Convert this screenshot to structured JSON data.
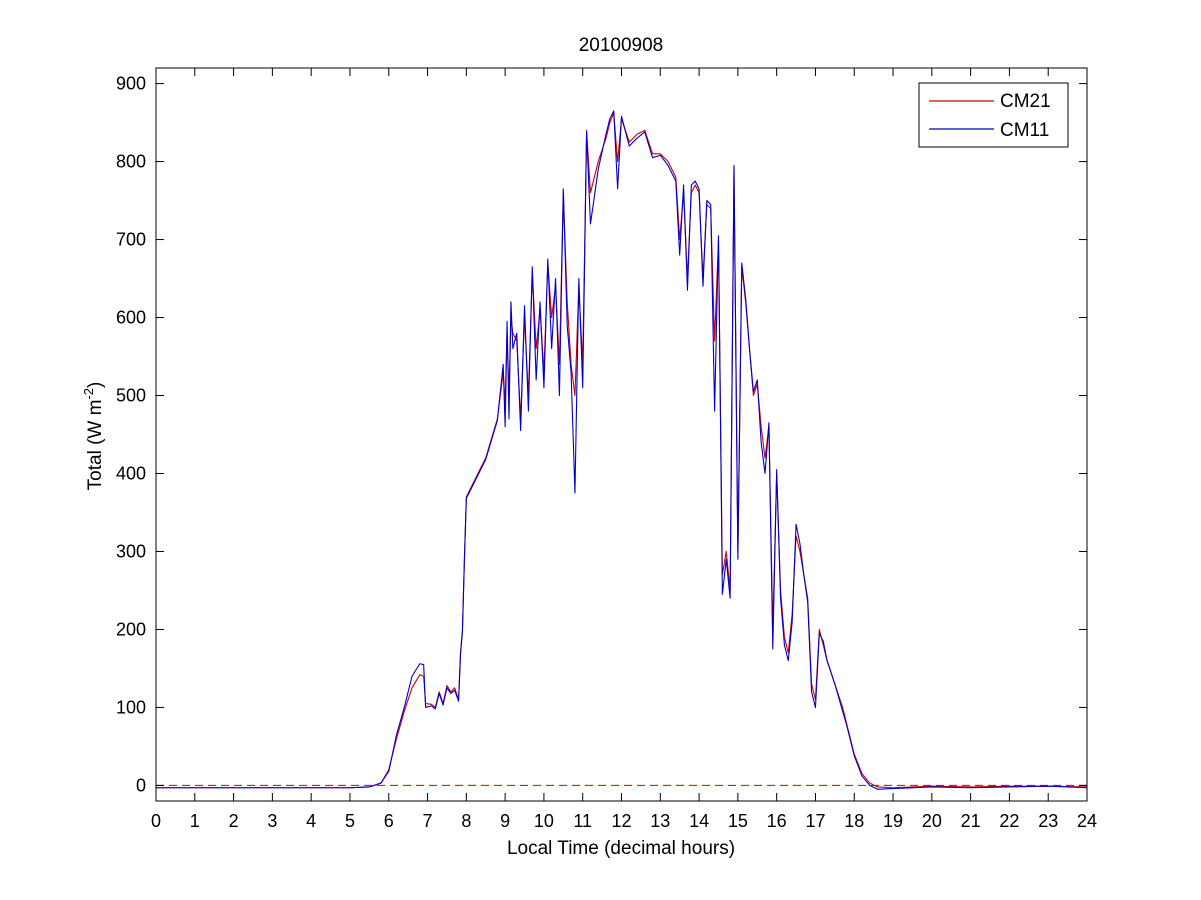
{
  "chart_data": {
    "type": "line",
    "title": "20100908",
    "xlabel": "Local Time (decimal hours)",
    "ylabel_main": "Total (W m",
    "ylabel_sup": "-2",
    "ylabel_close": ")",
    "xlim": [
      0,
      24
    ],
    "ylim": [
      -20,
      920
    ],
    "xticks": [
      0,
      1,
      2,
      3,
      4,
      5,
      6,
      7,
      8,
      9,
      10,
      11,
      12,
      13,
      14,
      15,
      16,
      17,
      18,
      19,
      20,
      21,
      22,
      23,
      24
    ],
    "yticks": [
      0,
      100,
      200,
      300,
      400,
      500,
      600,
      700,
      800,
      900
    ],
    "grid": false,
    "legend_position": "top-right",
    "reference_line": {
      "y": 0,
      "style": "dashed",
      "color": "#cc0000"
    },
    "series": [
      {
        "name": "CM21",
        "color": "#cc0000",
        "points": [
          [
            0,
            -3
          ],
          [
            1,
            -3
          ],
          [
            2,
            -3
          ],
          [
            3,
            -3
          ],
          [
            4,
            -3
          ],
          [
            5,
            -3
          ],
          [
            5.5,
            -2
          ],
          [
            5.8,
            3
          ],
          [
            6.0,
            20
          ],
          [
            6.2,
            60
          ],
          [
            6.4,
            95
          ],
          [
            6.6,
            125
          ],
          [
            6.8,
            142
          ],
          [
            6.9,
            140
          ],
          [
            6.95,
            105
          ],
          [
            7.1,
            104
          ],
          [
            7.2,
            100
          ],
          [
            7.3,
            120
          ],
          [
            7.4,
            105
          ],
          [
            7.5,
            128
          ],
          [
            7.6,
            120
          ],
          [
            7.7,
            125
          ],
          [
            7.8,
            110
          ],
          [
            7.85,
            170
          ],
          [
            7.9,
            200
          ],
          [
            7.95,
            290
          ],
          [
            8.0,
            370
          ],
          [
            8.2,
            390
          ],
          [
            8.5,
            420
          ],
          [
            8.8,
            470
          ],
          [
            8.95,
            530
          ],
          [
            9.0,
            490
          ],
          [
            9.05,
            580
          ],
          [
            9.1,
            500
          ],
          [
            9.15,
            600
          ],
          [
            9.2,
            580
          ],
          [
            9.3,
            570
          ],
          [
            9.4,
            470
          ],
          [
            9.5,
            600
          ],
          [
            9.6,
            500
          ],
          [
            9.7,
            660
          ],
          [
            9.8,
            560
          ],
          [
            9.9,
            610
          ],
          [
            10.0,
            530
          ],
          [
            10.1,
            670
          ],
          [
            10.2,
            600
          ],
          [
            10.3,
            640
          ],
          [
            10.4,
            540
          ],
          [
            10.5,
            760
          ],
          [
            10.6,
            620
          ],
          [
            10.7,
            540
          ],
          [
            10.8,
            500
          ],
          [
            10.9,
            640
          ],
          [
            11.0,
            540
          ],
          [
            11.1,
            840
          ],
          [
            11.2,
            760
          ],
          [
            11.4,
            800
          ],
          [
            11.6,
            830
          ],
          [
            11.7,
            850
          ],
          [
            11.8,
            862
          ],
          [
            11.9,
            800
          ],
          [
            12.0,
            855
          ],
          [
            12.2,
            825
          ],
          [
            12.4,
            835
          ],
          [
            12.6,
            840
          ],
          [
            12.8,
            810
          ],
          [
            13.0,
            810
          ],
          [
            13.2,
            800
          ],
          [
            13.4,
            780
          ],
          [
            13.5,
            700
          ],
          [
            13.6,
            760
          ],
          [
            13.7,
            650
          ],
          [
            13.8,
            760
          ],
          [
            13.9,
            770
          ],
          [
            14.0,
            760
          ],
          [
            14.1,
            650
          ],
          [
            14.2,
            745
          ],
          [
            14.3,
            740
          ],
          [
            14.4,
            570
          ],
          [
            14.5,
            700
          ],
          [
            14.6,
            270
          ],
          [
            14.7,
            300
          ],
          [
            14.8,
            250
          ],
          [
            14.9,
            790
          ],
          [
            15.0,
            300
          ],
          [
            15.1,
            665
          ],
          [
            15.2,
            620
          ],
          [
            15.3,
            560
          ],
          [
            15.4,
            500
          ],
          [
            15.5,
            515
          ],
          [
            15.6,
            460
          ],
          [
            15.7,
            420
          ],
          [
            15.8,
            460
          ],
          [
            15.9,
            200
          ],
          [
            16.0,
            400
          ],
          [
            16.1,
            250
          ],
          [
            16.2,
            190
          ],
          [
            16.3,
            170
          ],
          [
            16.4,
            220
          ],
          [
            16.5,
            320
          ],
          [
            16.6,
            300
          ],
          [
            16.7,
            270
          ],
          [
            16.8,
            240
          ],
          [
            16.9,
            130
          ],
          [
            17.0,
            110
          ],
          [
            17.1,
            200
          ],
          [
            17.2,
            180
          ],
          [
            17.3,
            160
          ],
          [
            17.5,
            130
          ],
          [
            17.7,
            100
          ],
          [
            17.8,
            80
          ],
          [
            18.0,
            40
          ],
          [
            18.2,
            15
          ],
          [
            18.4,
            3
          ],
          [
            18.6,
            -2
          ],
          [
            19.0,
            -3
          ],
          [
            20.0,
            -1
          ],
          [
            21.0,
            -2
          ],
          [
            22.0,
            -1
          ],
          [
            23.0,
            -1
          ],
          [
            24.0,
            -2
          ]
        ]
      },
      {
        "name": "CM11",
        "color": "#0000cc",
        "points": [
          [
            0,
            -3
          ],
          [
            1,
            -3
          ],
          [
            2,
            -3
          ],
          [
            3,
            -3
          ],
          [
            4,
            -3
          ],
          [
            5,
            -3
          ],
          [
            5.5,
            -2
          ],
          [
            5.8,
            3
          ],
          [
            6.0,
            18
          ],
          [
            6.2,
            65
          ],
          [
            6.4,
            100
          ],
          [
            6.6,
            140
          ],
          [
            6.8,
            156
          ],
          [
            6.9,
            155
          ],
          [
            6.95,
            100
          ],
          [
            7.1,
            102
          ],
          [
            7.2,
            98
          ],
          [
            7.3,
            118
          ],
          [
            7.4,
            103
          ],
          [
            7.5,
            125
          ],
          [
            7.6,
            118
          ],
          [
            7.7,
            122
          ],
          [
            7.8,
            108
          ],
          [
            7.85,
            168
          ],
          [
            7.9,
            198
          ],
          [
            7.95,
            288
          ],
          [
            8.0,
            368
          ],
          [
            8.2,
            388
          ],
          [
            8.5,
            418
          ],
          [
            8.8,
            468
          ],
          [
            8.95,
            540
          ],
          [
            9.0,
            460
          ],
          [
            9.05,
            595
          ],
          [
            9.1,
            470
          ],
          [
            9.15,
            620
          ],
          [
            9.2,
            560
          ],
          [
            9.3,
            580
          ],
          [
            9.4,
            455
          ],
          [
            9.5,
            615
          ],
          [
            9.6,
            480
          ],
          [
            9.7,
            665
          ],
          [
            9.8,
            520
          ],
          [
            9.9,
            620
          ],
          [
            10.0,
            510
          ],
          [
            10.1,
            675
          ],
          [
            10.2,
            560
          ],
          [
            10.3,
            650
          ],
          [
            10.4,
            500
          ],
          [
            10.5,
            765
          ],
          [
            10.6,
            590
          ],
          [
            10.7,
            530
          ],
          [
            10.8,
            375
          ],
          [
            10.9,
            650
          ],
          [
            11.0,
            510
          ],
          [
            11.1,
            838
          ],
          [
            11.2,
            720
          ],
          [
            11.4,
            790
          ],
          [
            11.6,
            835
          ],
          [
            11.7,
            855
          ],
          [
            11.8,
            865
          ],
          [
            11.9,
            765
          ],
          [
            12.0,
            858
          ],
          [
            12.2,
            820
          ],
          [
            12.4,
            830
          ],
          [
            12.6,
            838
          ],
          [
            12.8,
            805
          ],
          [
            13.0,
            808
          ],
          [
            13.2,
            795
          ],
          [
            13.4,
            775
          ],
          [
            13.5,
            680
          ],
          [
            13.6,
            770
          ],
          [
            13.7,
            635
          ],
          [
            13.8,
            770
          ],
          [
            13.9,
            775
          ],
          [
            14.0,
            765
          ],
          [
            14.1,
            640
          ],
          [
            14.2,
            750
          ],
          [
            14.3,
            745
          ],
          [
            14.4,
            480
          ],
          [
            14.5,
            705
          ],
          [
            14.6,
            245
          ],
          [
            14.7,
            290
          ],
          [
            14.8,
            240
          ],
          [
            14.9,
            795
          ],
          [
            15.0,
            290
          ],
          [
            15.1,
            670
          ],
          [
            15.2,
            625
          ],
          [
            15.3,
            560
          ],
          [
            15.4,
            505
          ],
          [
            15.5,
            520
          ],
          [
            15.6,
            440
          ],
          [
            15.7,
            400
          ],
          [
            15.8,
            465
          ],
          [
            15.9,
            175
          ],
          [
            16.0,
            405
          ],
          [
            16.1,
            240
          ],
          [
            16.2,
            180
          ],
          [
            16.3,
            160
          ],
          [
            16.4,
            210
          ],
          [
            16.5,
            335
          ],
          [
            16.6,
            310
          ],
          [
            16.7,
            270
          ],
          [
            16.8,
            235
          ],
          [
            16.9,
            120
          ],
          [
            17.0,
            100
          ],
          [
            17.1,
            195
          ],
          [
            17.2,
            185
          ],
          [
            17.3,
            160
          ],
          [
            17.5,
            130
          ],
          [
            17.7,
            95
          ],
          [
            17.8,
            78
          ],
          [
            18.0,
            38
          ],
          [
            18.2,
            12
          ],
          [
            18.4,
            0
          ],
          [
            18.6,
            -5
          ],
          [
            19.0,
            -4
          ],
          [
            20.0,
            -2
          ],
          [
            21.0,
            -3
          ],
          [
            22.0,
            -2
          ],
          [
            23.0,
            -1
          ],
          [
            24.0,
            -3
          ]
        ]
      }
    ]
  }
}
